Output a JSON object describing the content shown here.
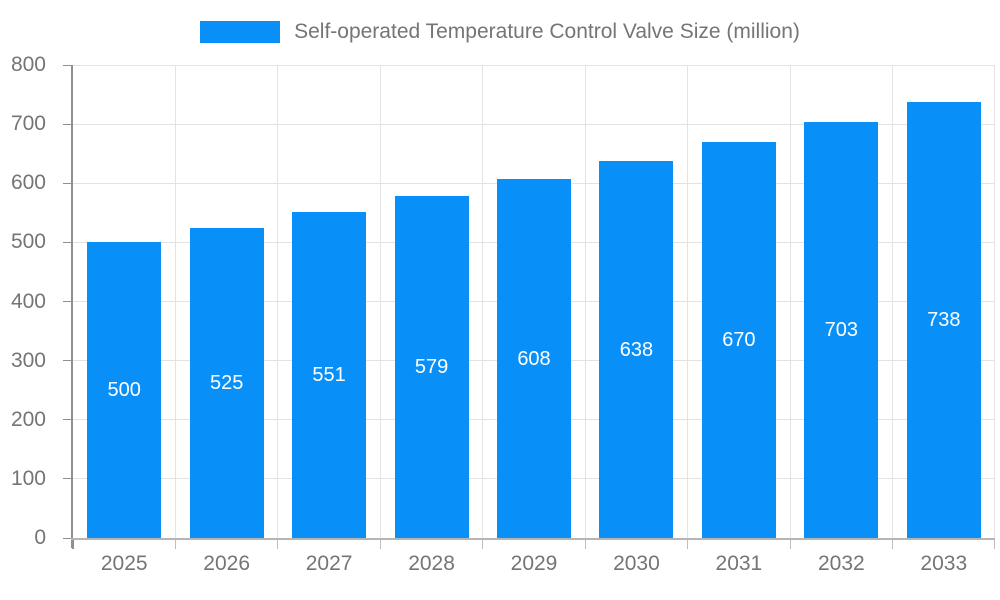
{
  "chart_data": {
    "type": "bar",
    "title": "Self-operated Temperature Control Valve Size (million)",
    "categories": [
      "2025",
      "2026",
      "2027",
      "2028",
      "2029",
      "2030",
      "2031",
      "2032",
      "2033"
    ],
    "values": [
      500,
      525,
      551,
      579,
      608,
      638,
      670,
      703,
      738
    ],
    "xlabel": "",
    "ylabel": "",
    "ylim": [
      0,
      800
    ],
    "ytick_step": 100,
    "yticks": [
      0,
      100,
      200,
      300,
      400,
      500,
      600,
      700,
      800
    ],
    "grid": true,
    "legend_position": "top",
    "legend_entries": [
      "Self-operated Temperature Control Valve Size (million)"
    ],
    "bar_color": "#0990f8",
    "value_label_color": "#ffffff",
    "axis_text_color": "#757575",
    "gridline_color": "#e3e3e3"
  },
  "legend": {
    "label": "Self-operated Temperature Control Valve Size (million)",
    "swatch_color": "#0990f8"
  }
}
